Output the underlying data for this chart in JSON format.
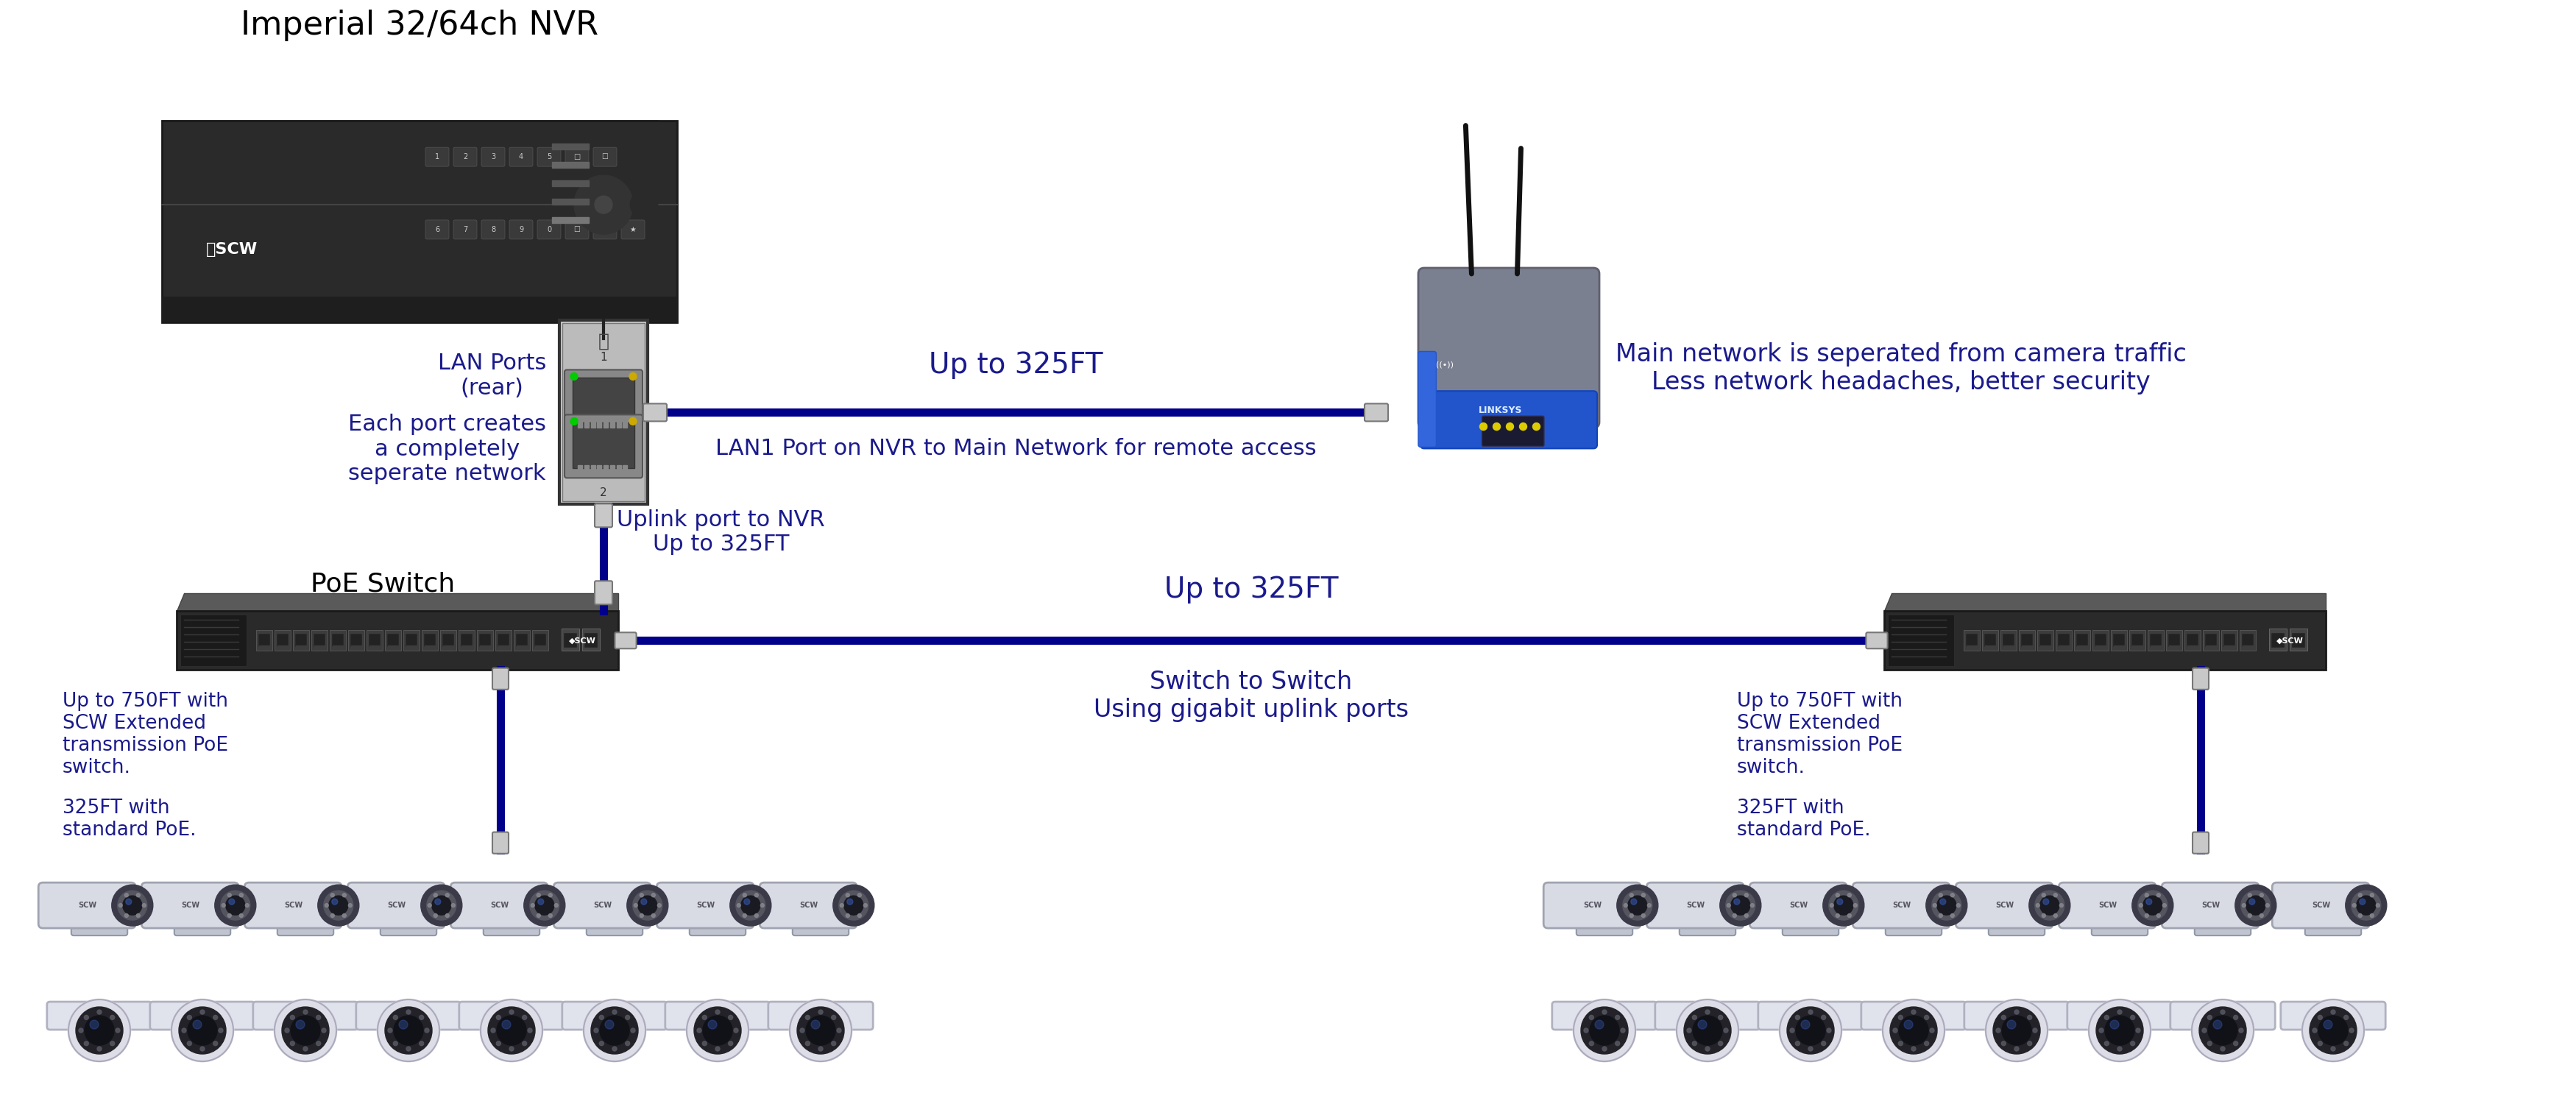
{
  "bg_color": "#ffffff",
  "blue": "#1a1a8c",
  "black": "#000000",
  "cable_color": "#00008B",
  "nvr_label": "Imperial 32/64ch NVR",
  "lan_ports_label": "LAN Ports\n(rear)",
  "each_port_label": "Each port creates\na completely\nseperate network",
  "up_to_325ft_top": "Up to 325FT",
  "lan1_label": "LAN1 Port on NVR to Main Network for remote access",
  "main_network_label": "Main network is seperated from camera traffic\nLess network headaches, better security",
  "uplink_label": "Uplink port to NVR\nUp to 325FT",
  "poe_switch_label": "PoE Switch",
  "up_to_325ft_bottom": "Up to 325FT",
  "switch_to_switch_label": "Switch to Switch\nUsing gigabit uplink ports",
  "up_to_750ft_left": "Up to 750FT with\nSCW Extended\ntransmission PoE\nswitch.",
  "standard_poe_left": "325FT with\nstandard PoE.",
  "up_to_750ft_right": "Up to 750FT with\nSCW Extended\ntransmission PoE\nswitch.",
  "standard_poe_right": "325FT with\nstandard PoE."
}
